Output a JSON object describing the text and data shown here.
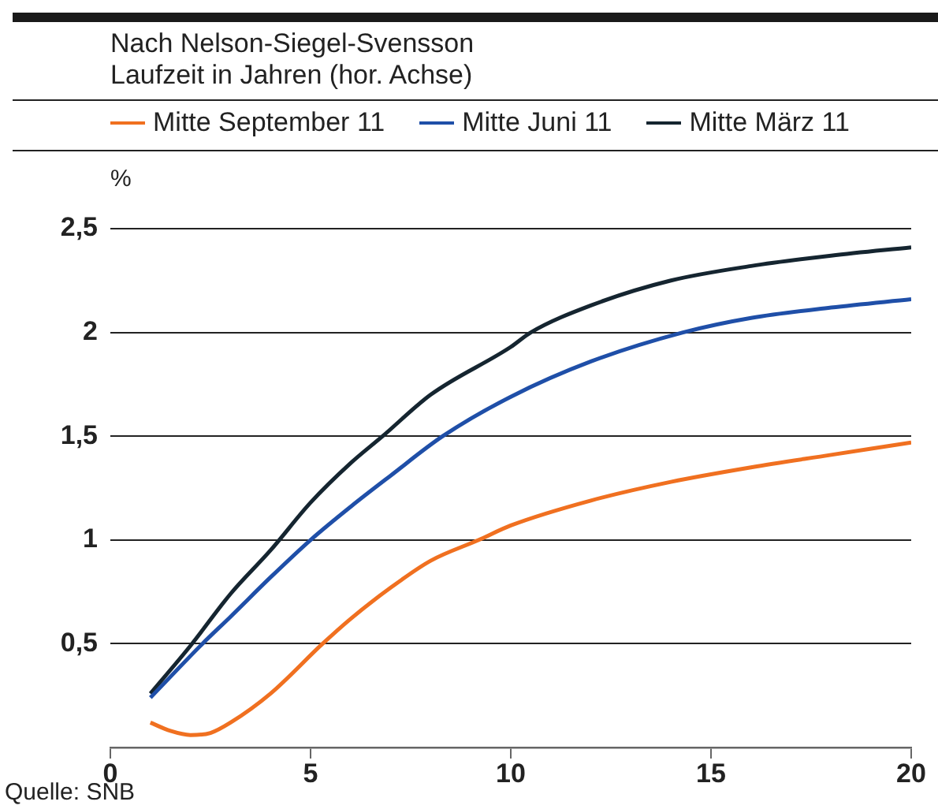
{
  "chart_data": {
    "type": "line",
    "title": "Nach Nelson-Siegel-Svensson",
    "subtitle": "Laufzeit in Jahren (hor. Achse)",
    "ylabel": "%",
    "annotations": [
      "Quelle: SNB"
    ],
    "legend": "top",
    "grid": "y",
    "xlim": [
      0,
      20
    ],
    "xticks": [
      0,
      5,
      10,
      15,
      20
    ],
    "ylim": [
      0,
      2.5
    ],
    "yticks": [
      {
        "value": 0.5,
        "label": "0,5"
      },
      1,
      {
        "value": 1.5,
        "label": "1,5"
      },
      2,
      {
        "value": 2.5,
        "label": "2,5"
      }
    ],
    "series": [
      {
        "name": "Mitte September 11",
        "color": "#f07020",
        "x": [
          1,
          1.5,
          2,
          2.5,
          3,
          4,
          5.3,
          6,
          7,
          8,
          9.2,
          10,
          12,
          14,
          16,
          18,
          20
        ],
        "values": [
          0.12,
          0.08,
          0.06,
          0.07,
          0.12,
          0.26,
          0.5,
          0.62,
          0.77,
          0.9,
          1.0,
          1.07,
          1.19,
          1.28,
          1.35,
          1.41,
          1.47
        ]
      },
      {
        "name": "Mitte Juni 11",
        "color": "#1f4fa8",
        "x": [
          1,
          2.3,
          3,
          4,
          5,
          6,
          7,
          8.3,
          10,
          12,
          14.3,
          16,
          18,
          20
        ],
        "values": [
          0.24,
          0.5,
          0.63,
          0.82,
          1.0,
          1.16,
          1.31,
          1.5,
          1.69,
          1.86,
          2.0,
          2.07,
          2.12,
          2.16
        ]
      },
      {
        "name": "Mitte März 11",
        "color": "#152530",
        "x": [
          1,
          2,
          3,
          4,
          5,
          6,
          6.8,
          8,
          10,
          10.5,
          12,
          14,
          16,
          18,
          20
        ],
        "values": [
          0.26,
          0.49,
          0.74,
          0.95,
          1.18,
          1.37,
          1.5,
          1.7,
          1.93,
          2.0,
          2.13,
          2.25,
          2.32,
          2.37,
          2.41
        ]
      }
    ]
  }
}
